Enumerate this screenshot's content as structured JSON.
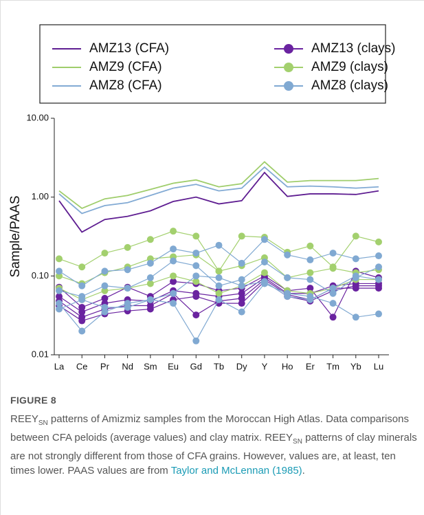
{
  "chart_data": {
    "type": "line",
    "ylabel": "Sample/PAAS",
    "log_y": true,
    "ylim": [
      0.01,
      10
    ],
    "yticks": [
      {
        "value": 0.01,
        "label": "0.01"
      },
      {
        "value": 0.1,
        "label": "0.10"
      },
      {
        "value": 1,
        "label": "1.00"
      },
      {
        "value": 10,
        "label": "10.00"
      }
    ],
    "categories": [
      "La",
      "Ce",
      "Pr",
      "Nd",
      "Sm",
      "Eu",
      "Gd",
      "Tb",
      "Dy",
      "Y",
      "Ho",
      "Er",
      "Tm",
      "Yb",
      "Lu"
    ],
    "series": [
      {
        "name": "AMZ13 (CFA)",
        "color": "#5e1d91",
        "values": [
          0.9,
          0.36,
          0.52,
          0.57,
          0.67,
          0.88,
          1.0,
          0.82,
          0.9,
          2.05,
          1.02,
          1.1,
          1.1,
          1.08,
          1.2
        ]
      },
      {
        "name": "AMZ9 (CFA)",
        "color": "#9fcd6b",
        "values": [
          1.2,
          0.72,
          0.95,
          1.05,
          1.25,
          1.5,
          1.65,
          1.35,
          1.48,
          2.8,
          1.55,
          1.62,
          1.62,
          1.62,
          1.72
        ]
      },
      {
        "name": "AMZ8 (CFA)",
        "color": "#82aad4",
        "values": [
          1.1,
          0.62,
          0.78,
          0.85,
          1.05,
          1.3,
          1.45,
          1.2,
          1.3,
          2.4,
          1.35,
          1.38,
          1.35,
          1.3,
          1.35
        ]
      },
      {
        "name": "AMZ13 (clays)",
        "color": "#6a23a0",
        "marker": "circle",
        "samples": [
          [
            0.072,
            0.04,
            0.052,
            0.072,
            0.055,
            0.085,
            0.08,
            0.065,
            0.07,
            0.1,
            0.065,
            0.07,
            0.03,
            0.115,
            0.095
          ],
          [
            0.055,
            0.035,
            0.045,
            0.05,
            0.048,
            0.065,
            0.06,
            0.055,
            0.06,
            0.095,
            0.06,
            0.06,
            0.075,
            0.08,
            0.08
          ],
          [
            0.048,
            0.03,
            0.038,
            0.042,
            0.042,
            0.06,
            0.032,
            0.048,
            0.052,
            0.09,
            0.058,
            0.05,
            0.07,
            0.07,
            0.07
          ],
          [
            0.042,
            0.027,
            0.033,
            0.036,
            0.038,
            0.05,
            0.055,
            0.045,
            0.045,
            0.085,
            0.055,
            0.048,
            0.065,
            0.075,
            0.075
          ]
        ]
      },
      {
        "name": "AMZ9 (clays)",
        "color": "#a3d06e",
        "marker": "circle",
        "samples": [
          [
            0.165,
            0.13,
            0.195,
            0.23,
            0.29,
            0.37,
            0.32,
            0.115,
            0.32,
            0.31,
            0.2,
            0.24,
            0.13,
            0.32,
            0.27
          ],
          [
            0.1,
            0.08,
            0.11,
            0.13,
            0.165,
            0.175,
            0.185,
            0.115,
            0.135,
            0.17,
            0.095,
            0.11,
            0.125,
            0.11,
            0.12
          ],
          [
            0.07,
            0.05,
            0.065,
            0.07,
            0.08,
            0.1,
            0.085,
            0.06,
            0.075,
            0.11,
            0.065,
            0.06,
            0.07,
            0.09,
            0.09
          ]
        ]
      },
      {
        "name": "AMZ8 (clays)",
        "color": "#80a9d2",
        "marker": "circle",
        "samples": [
          [
            0.115,
            0.075,
            0.115,
            0.12,
            0.145,
            0.22,
            0.195,
            0.245,
            0.145,
            0.29,
            0.185,
            0.16,
            0.195,
            0.165,
            0.18
          ],
          [
            0.065,
            0.055,
            0.075,
            0.07,
            0.095,
            0.155,
            0.135,
            0.075,
            0.09,
            0.15,
            0.095,
            0.09,
            0.06,
            0.095,
            0.13
          ],
          [
            0.045,
            0.02,
            0.035,
            0.045,
            0.05,
            0.045,
            0.015,
            0.05,
            0.035,
            0.08,
            0.06,
            0.055,
            0.045,
            0.03,
            0.033
          ],
          [
            0.038,
            0.05,
            0.04,
            0.04,
            0.05,
            0.06,
            0.1,
            0.095,
            0.075,
            0.085,
            0.055,
            0.05,
            0.07,
            0.1,
            0.09
          ]
        ]
      }
    ]
  },
  "figure": {
    "label": "FIGURE 8",
    "caption": [
      "REEY",
      "SN",
      " patterns of Amizmiz samples from the Moroccan High Atlas. Data comparisons between CFA peloids (average values) and clay matrix. REEY",
      "SN",
      " patterns of clay minerals are not strongly different from those of CFA grains. However, values are, at least, ten times lower. PAAS values are from ",
      "Taylor and McLennan (1985)",
      "."
    ]
  }
}
